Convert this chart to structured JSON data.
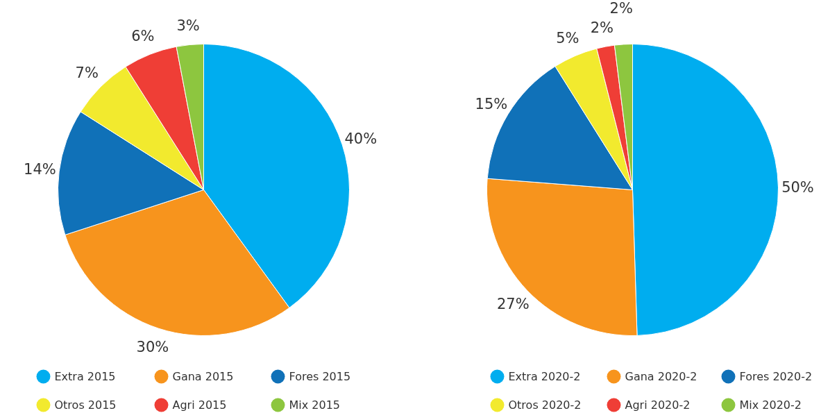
{
  "chart_data": [
    {
      "type": "pie",
      "categories": [
        "Extra 2015",
        "Gana 2015",
        "Fores 2015",
        "Otros 2015",
        "Agri 2015",
        "Mix 2015"
      ],
      "values": [
        40,
        30,
        14,
        7,
        6,
        3
      ],
      "value_labels": [
        "40%",
        "30%",
        "14%",
        "7%",
        "6%",
        "3%"
      ],
      "colors": [
        "#00adef",
        "#f7941d",
        "#1071b8",
        "#f2ea2e",
        "#ef3e36",
        "#8dc63f"
      ],
      "legend": "bottom"
    },
    {
      "type": "pie",
      "categories": [
        "Extra 2020-2",
        "Gana 2020-2",
        "Fores 2020-2",
        "Otros 2020-2",
        "Agri 2020-2",
        "Mix 2020-2"
      ],
      "values": [
        50,
        27,
        15,
        5,
        2,
        2
      ],
      "value_labels": [
        "50%",
        "27%",
        "15%",
        "5%",
        "2%",
        "2%"
      ],
      "colors": [
        "#00adef",
        "#f7941d",
        "#1071b8",
        "#f2ea2e",
        "#ef3e36",
        "#8dc63f"
      ],
      "legend": "bottom"
    }
  ]
}
